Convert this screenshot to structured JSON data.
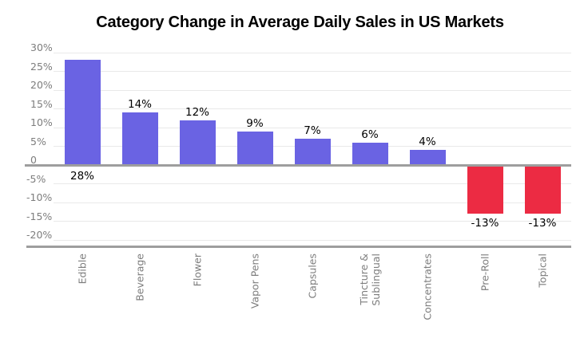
{
  "title": "Category Change in Average Daily Sales in US Markets",
  "colors": {
    "positive_bar": "#6a63e3",
    "negative_bar": "#ec2b43",
    "gridline": "#e9e9e9",
    "axis_line": "#9e9e9e",
    "tick_text": "#7d7d7d",
    "data_label_text": "#000000",
    "background": "#ffffff"
  },
  "chart_data": {
    "type": "bar",
    "title": "Category Change in Average Daily Sales in US Markets",
    "xlabel": "",
    "ylabel": "",
    "categories": [
      "Edible",
      "Beverage",
      "Flower",
      "Vapor Pens",
      "Capsules",
      "Tincture & Sublingual",
      "Concentrates",
      "Pre-Roll",
      "Topical"
    ],
    "values": [
      28,
      14,
      12,
      9,
      7,
      6,
      4,
      -13,
      -13
    ],
    "data_labels": [
      "28%",
      "14%",
      "12%",
      "9%",
      "7%",
      "6%",
      "4%",
      "-13%",
      "-13%"
    ],
    "label_positions": [
      "below_zero",
      "above",
      "above",
      "above",
      "above",
      "above",
      "above",
      "below_bar",
      "below_bar"
    ],
    "y_ticks": [
      "30%",
      "25%",
      "20%",
      "15%",
      "10%",
      "5%",
      "0",
      "-5%",
      "-10%",
      "-15%",
      "-20%"
    ],
    "y_tick_values": [
      30,
      25,
      20,
      15,
      10,
      5,
      0,
      -5,
      -10,
      -15,
      -20
    ],
    "ylim": [
      -23,
      32
    ],
    "grid": true,
    "legend": false,
    "bar_color_rule": "positive bars purple, negative bars red",
    "x_label_rotation_deg": -90
  }
}
